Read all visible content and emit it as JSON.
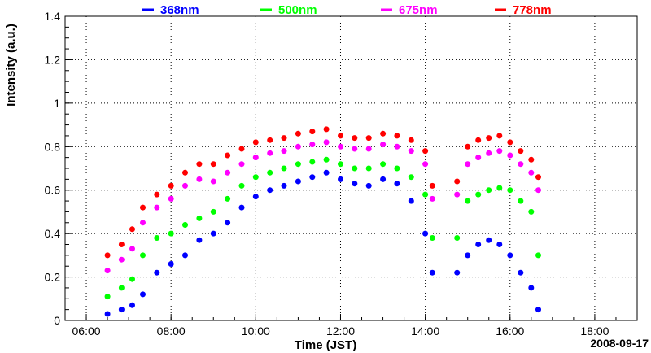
{
  "chart_data": {
    "type": "scatter",
    "title": "",
    "xlabel": "Time (JST)",
    "ylabel": "Intensity (a.u.)",
    "date_label": "2008-09-17",
    "xlim": [
      "05:30",
      "19:00"
    ],
    "ylim": [
      0,
      1.4
    ],
    "x_ticks": [
      "06:00",
      "08:00",
      "10:00",
      "12:00",
      "14:00",
      "16:00",
      "18:00"
    ],
    "y_ticks": [
      "0",
      "0.2",
      "0.4",
      "0.6",
      "0.8",
      "1",
      "1.2",
      "1.4"
    ],
    "grid": true,
    "legend_position": "top",
    "x": [
      "06:30",
      "06:50",
      "07:05",
      "07:20",
      "07:40",
      "08:00",
      "08:20",
      "08:40",
      "09:00",
      "09:20",
      "09:40",
      "10:00",
      "10:20",
      "10:40",
      "11:00",
      "11:20",
      "11:40",
      "12:00",
      "12:20",
      "12:40",
      "13:00",
      "13:20",
      "13:40",
      "14:00",
      "14:10",
      "14:45",
      "15:00",
      "15:15",
      "15:30",
      "15:45",
      "16:00",
      "16:15",
      "16:30",
      "16:40"
    ],
    "series": [
      {
        "name": "368nm",
        "color": "#0000ff",
        "values": [
          0.03,
          0.05,
          0.07,
          0.12,
          0.22,
          0.26,
          0.3,
          0.37,
          0.4,
          0.45,
          0.52,
          0.57,
          0.6,
          0.62,
          0.64,
          0.66,
          0.68,
          0.65,
          0.63,
          0.62,
          0.65,
          0.63,
          0.55,
          0.4,
          0.22,
          0.22,
          0.3,
          0.35,
          0.37,
          0.35,
          0.3,
          0.22,
          0.15,
          0.05
        ]
      },
      {
        "name": "500nm",
        "color": "#00ff00",
        "values": [
          0.11,
          0.15,
          0.19,
          0.3,
          0.38,
          0.4,
          0.44,
          0.47,
          0.5,
          0.56,
          0.62,
          0.66,
          0.68,
          0.7,
          0.72,
          0.73,
          0.74,
          0.72,
          0.7,
          0.7,
          0.72,
          0.7,
          0.66,
          0.58,
          0.38,
          0.38,
          0.55,
          0.58,
          0.6,
          0.61,
          0.6,
          0.55,
          0.5,
          0.3
        ]
      },
      {
        "name": "675nm",
        "color": "#ff00ff",
        "values": [
          0.23,
          0.28,
          0.33,
          0.45,
          0.52,
          0.56,
          0.62,
          0.65,
          0.64,
          0.68,
          0.72,
          0.75,
          0.77,
          0.78,
          0.8,
          0.81,
          0.82,
          0.8,
          0.79,
          0.79,
          0.81,
          0.8,
          0.78,
          0.72,
          0.56,
          0.58,
          0.72,
          0.75,
          0.77,
          0.78,
          0.76,
          0.72,
          0.68,
          0.6
        ]
      },
      {
        "name": "778nm",
        "color": "#ff0000",
        "values": [
          0.3,
          0.35,
          0.42,
          0.52,
          0.58,
          0.62,
          0.68,
          0.72,
          0.72,
          0.76,
          0.79,
          0.82,
          0.83,
          0.84,
          0.86,
          0.87,
          0.88,
          0.85,
          0.84,
          0.84,
          0.86,
          0.85,
          0.83,
          0.78,
          0.62,
          0.64,
          0.8,
          0.83,
          0.84,
          0.85,
          0.82,
          0.78,
          0.74,
          0.66
        ]
      }
    ]
  }
}
